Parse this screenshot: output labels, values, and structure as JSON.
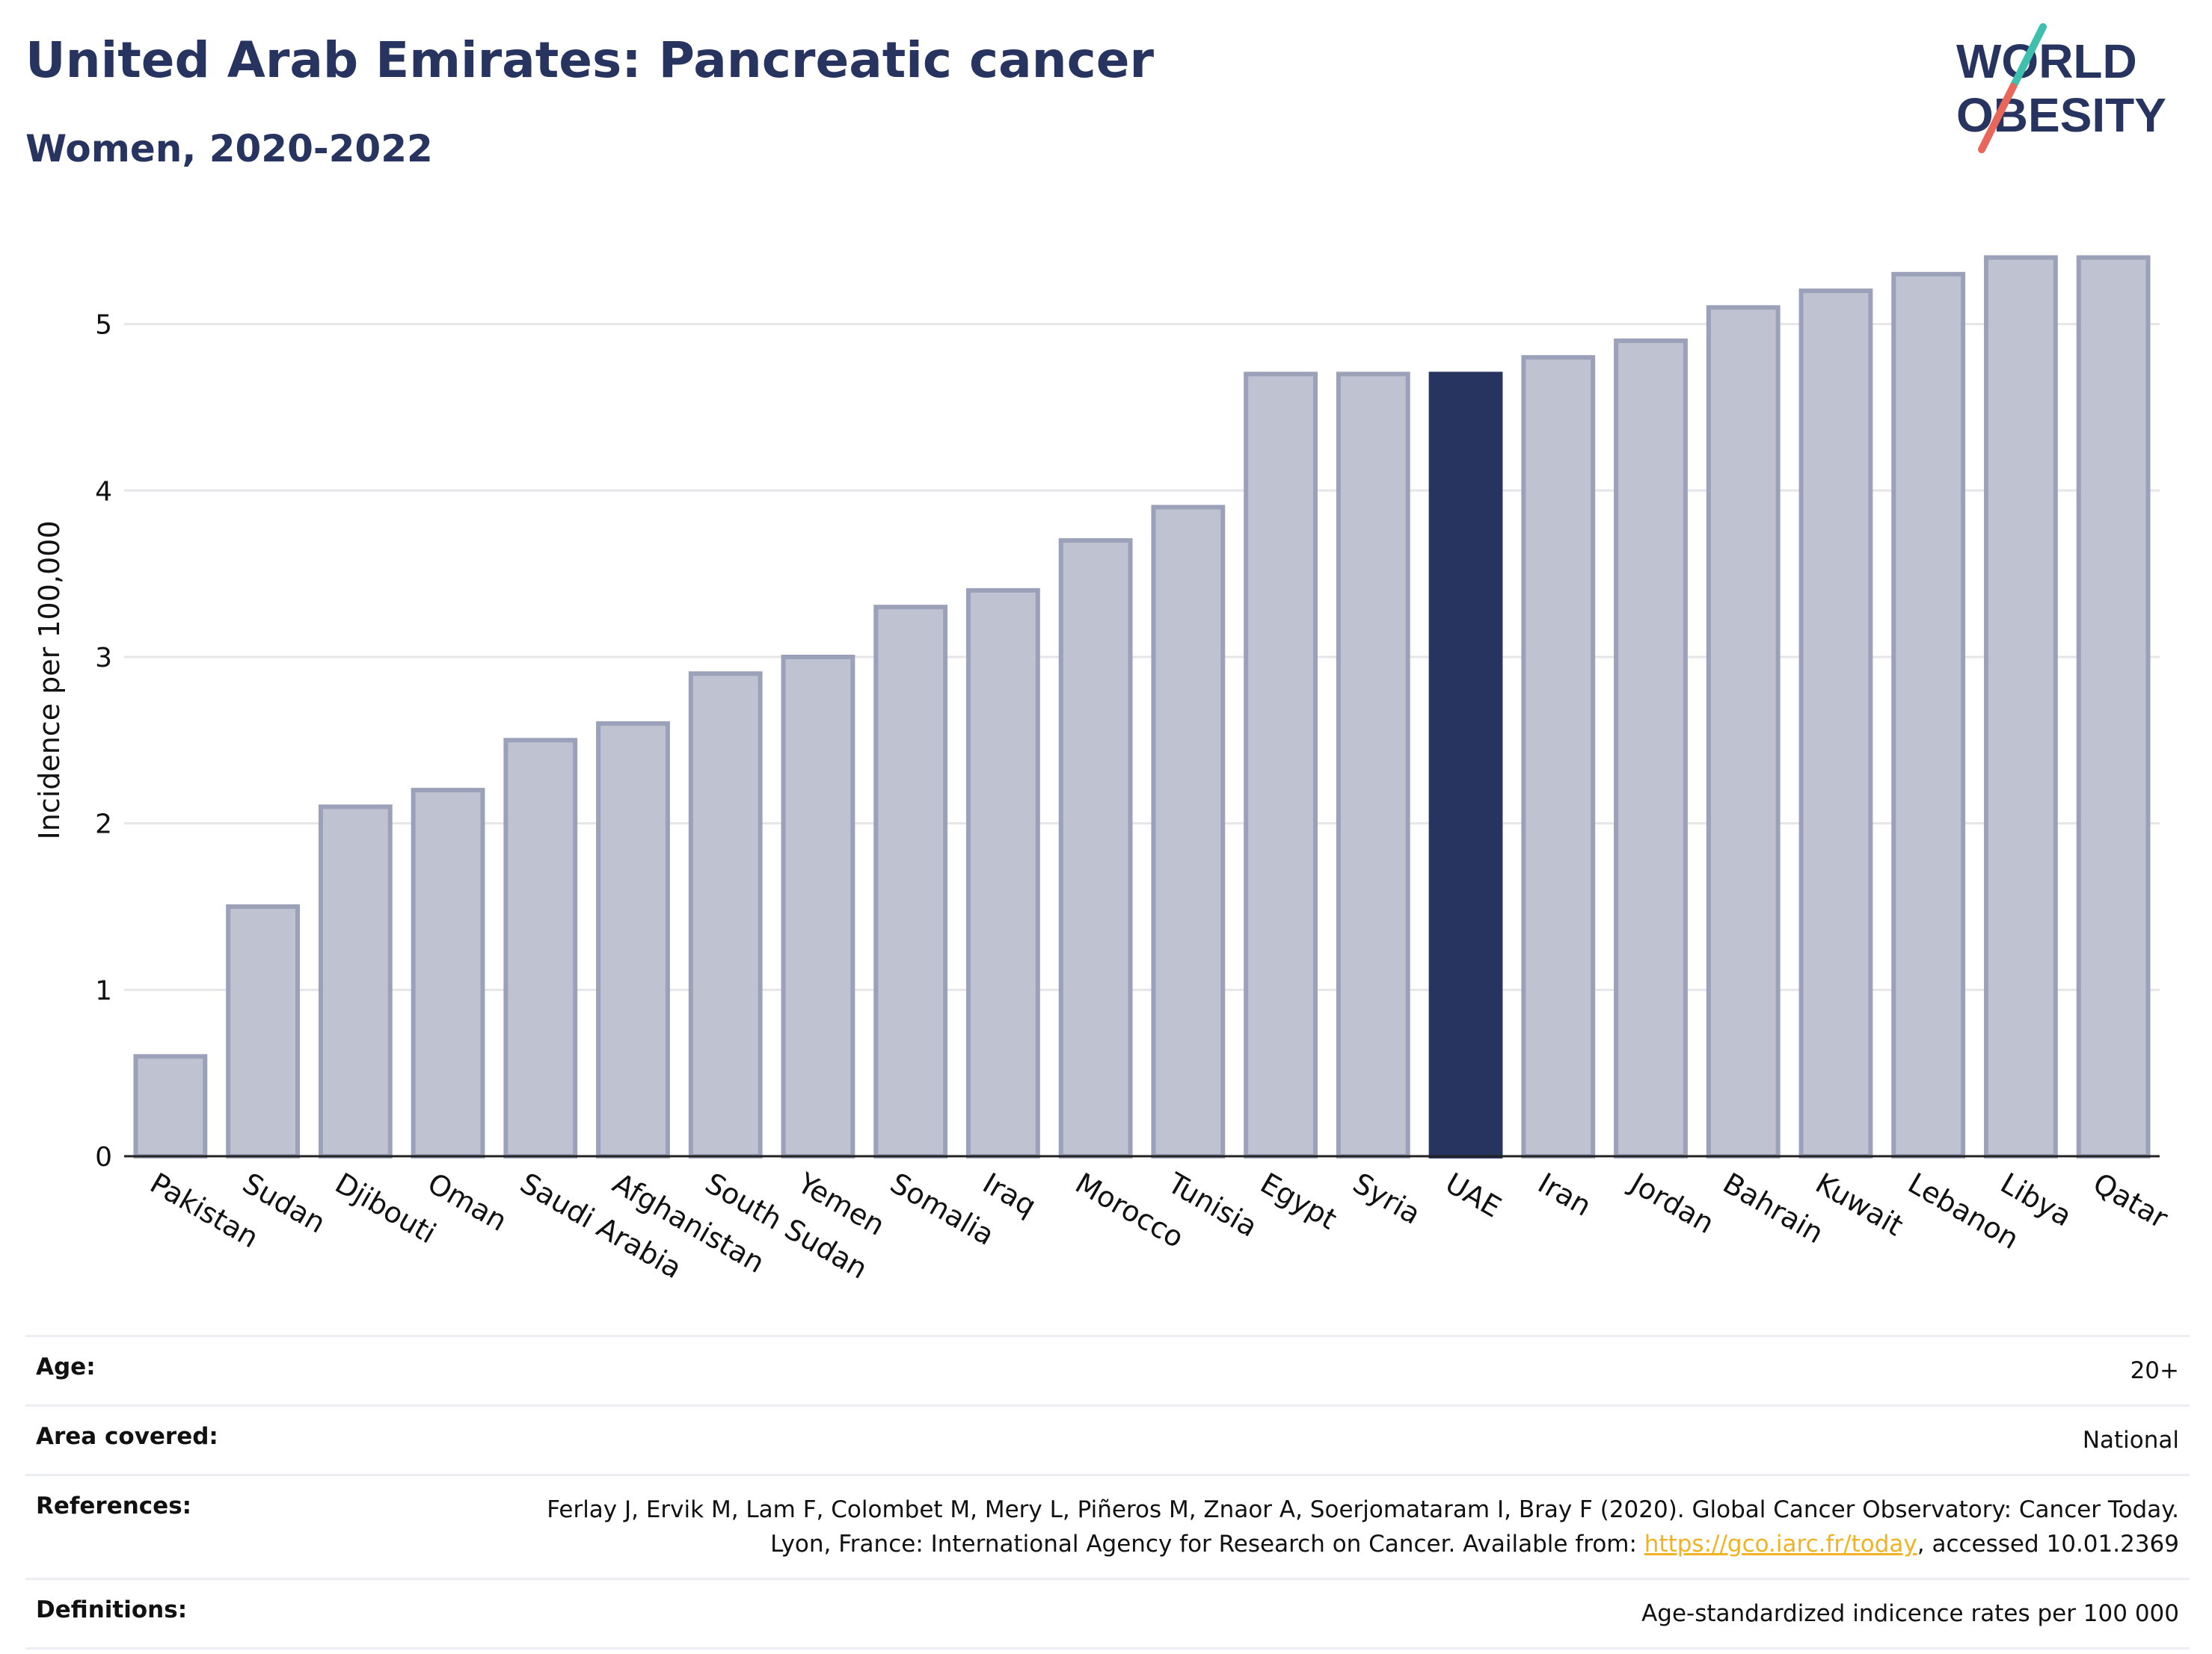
{
  "header": {
    "title": "United Arab Emirates: Pancreatic cancer",
    "subtitle": "Women, 2020-2022"
  },
  "logo": {
    "line1": "WORLD",
    "line2": "OBESITY",
    "accent_teal": "#3fbfad",
    "accent_coral": "#e8675a"
  },
  "colors": {
    "highlight": "#283460",
    "bar": "#bfc2d0",
    "bar_edge": "#9ba1b8",
    "gridline": "#e6e6ea"
  },
  "chart_data": {
    "type": "bar",
    "ylabel": "Incidence per 100,000",
    "xlabel": "",
    "ylim": [
      0,
      5.6
    ],
    "yticks": [
      0,
      1,
      2,
      3,
      4,
      5
    ],
    "grid": true,
    "highlight": "UAE",
    "categories": [
      "Pakistan",
      "Sudan",
      "Djibouti",
      "Oman",
      "Saudi Arabia",
      "Afghanistan",
      "South Sudan",
      "Yemen",
      "Somalia",
      "Iraq",
      "Morocco",
      "Tunisia",
      "Egypt",
      "Syria",
      "UAE",
      "Iran",
      "Jordan",
      "Bahrain",
      "Kuwait",
      "Lebanon",
      "Libya",
      "Qatar"
    ],
    "values": [
      0.6,
      1.5,
      2.1,
      2.2,
      2.5,
      2.6,
      2.9,
      3.0,
      3.3,
      3.4,
      3.7,
      3.9,
      4.7,
      4.7,
      4.7,
      4.8,
      4.9,
      5.1,
      5.2,
      5.3,
      5.4,
      5.4
    ]
  },
  "meta": {
    "age_label": "Age:",
    "age_value": "20+",
    "area_label": "Area covered:",
    "area_value": "National",
    "references_label": "References:",
    "references_text": "Ferlay J, Ervik M, Lam F, Colombet M, Mery L, Piñeros M, Znaor A, Soerjomataram I, Bray F (2020). Global Cancer Observatory: Cancer Today. Lyon, France: International Agency for Research on Cancer. Available from: ",
    "references_link": "https://gco.iarc.fr/today",
    "references_suffix": ", accessed 10.01.2369",
    "definitions_label": "Definitions:",
    "definitions_value": "Age-standardized indicence rates per 100 000"
  }
}
